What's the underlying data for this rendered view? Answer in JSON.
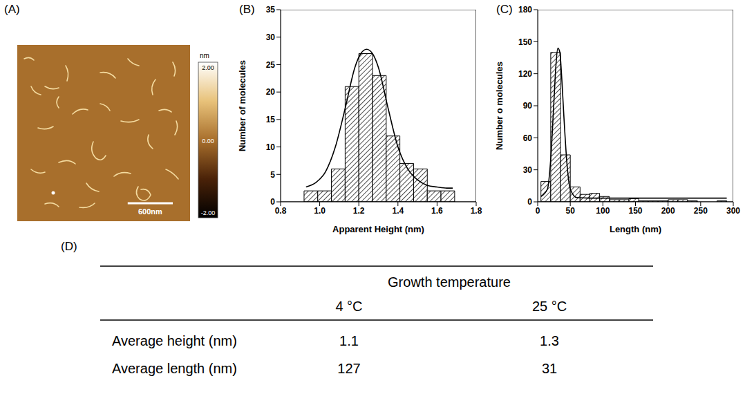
{
  "image": {
    "panel": "(A)",
    "scale_bar": {
      "value": 600,
      "label": "600nm"
    },
    "field_of_view": 2300,
    "colorbar": {
      "label": "nm",
      "range": [
        -2,
        2
      ],
      "ticks": [
        {
          "value": 2,
          "label": "2.00"
        },
        {
          "value": 0,
          "label": "0.00"
        },
        {
          "value": -2,
          "label": "-2.00"
        }
      ]
    }
  },
  "chart_data": [
    {
      "panel": "(B)",
      "type": "histogram",
      "x_label": "Apparent Height (nm)",
      "y_label": "Number of molecules",
      "bins": [
        0.92,
        0.99,
        1.06,
        1.13,
        1.2,
        1.27,
        1.34,
        1.41,
        1.48,
        1.55,
        1.62,
        1.69
      ],
      "values": [
        2,
        2,
        6,
        21,
        27,
        23,
        12,
        7,
        6,
        2,
        2
      ],
      "fit": {
        "x": [
          0.93,
          0.98,
          1.03,
          1.08,
          1.13,
          1.18,
          1.21,
          1.24,
          1.27,
          1.3,
          1.35,
          1.4,
          1.45,
          1.5,
          1.55,
          1.6,
          1.65,
          1.68
        ],
        "y": [
          2.7,
          3.5,
          5.5,
          10,
          17,
          24.5,
          27,
          27.8,
          27,
          24.5,
          17,
          10,
          6,
          4,
          3,
          2.7,
          2.5,
          2.5
        ]
      },
      "xlim": [
        0.8,
        1.8
      ],
      "xticks": [
        0.8,
        {
          "value": 1,
          "label": "1.0"
        },
        1.2,
        1.4,
        1.6,
        1.8
      ],
      "ylim": [
        0,
        35
      ],
      "yticks": [
        0,
        5,
        10,
        15,
        20,
        25,
        30,
        35
      ]
    },
    {
      "panel": "(C)",
      "type": "histogram",
      "x_label": "Length (nm)",
      "y_label": "Number o molecules",
      "bins": [
        5,
        20,
        35,
        50,
        65,
        80,
        95,
        110,
        125,
        140,
        155,
        170,
        185,
        200,
        215,
        230,
        245,
        260,
        275,
        290
      ],
      "values": [
        19,
        140,
        44,
        14,
        7,
        8,
        5,
        2,
        2,
        3,
        1,
        1,
        1,
        2,
        2,
        1,
        0,
        0,
        1
      ],
      "fit": {
        "x": [
          5,
          15,
          20,
          25,
          28,
          31,
          34,
          37,
          40,
          45,
          50,
          60,
          80,
          150,
          290
        ],
        "y": [
          5,
          12,
          40,
          95,
          128,
          144,
          140,
          115,
          82,
          35,
          12,
          4,
          3.5,
          3.5,
          3.5
        ]
      },
      "xlim": [
        0,
        300
      ],
      "xticks": [
        0,
        50,
        100,
        150,
        200,
        250,
        300
      ],
      "ylim": [
        0,
        180
      ],
      "yticks": [
        0,
        30,
        60,
        90,
        120,
        150,
        180
      ]
    }
  ],
  "table": {
    "panel": "(D)",
    "header": "Growth temperature",
    "columns": [
      "4 °C",
      "25 °C"
    ],
    "rows": [
      [
        "Average height (nm)",
        "1.1",
        "1.3"
      ],
      [
        "Average length (nm)",
        "127",
        "31"
      ]
    ]
  }
}
